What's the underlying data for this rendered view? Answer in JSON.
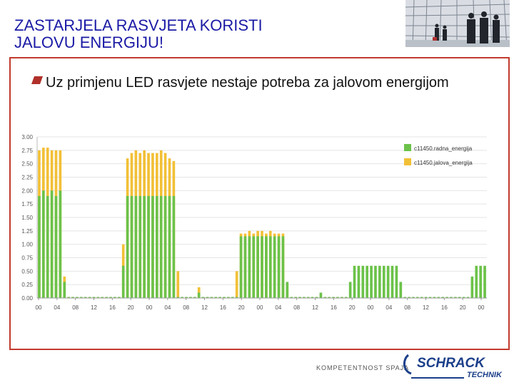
{
  "slide": {
    "title": "ZASTARJELA RASVJETA KORISTI\nJALOVU ENERGIJU!",
    "bullet": "Uz primjenu LED rasvjete nestaje potreba za jalovom energijom"
  },
  "footer": {
    "tagline": "KOMPETENTNOST SPAJA",
    "logo_main": "SCHRACK",
    "logo_sub": "TECHNIK"
  },
  "colors": {
    "title": "#1a1aa6",
    "frame": "#c23a2e",
    "bullet": "#b0302a",
    "radna": "#6cc24a",
    "jalova": "#f2c037"
  },
  "chart_data": {
    "type": "bar",
    "title": "",
    "xlabel": "",
    "ylabel": "",
    "ylim": [
      0,
      3
    ],
    "yticks": [
      "0.00",
      "0.25",
      "0.50",
      "0.75",
      "1.00",
      "1.25",
      "1.50",
      "1.75",
      "2.00",
      "2.25",
      "2.50",
      "2.75",
      "3.00"
    ],
    "xticks": [
      "00",
      "04",
      "08",
      "12",
      "16",
      "20",
      "00",
      "04",
      "08",
      "12",
      "16",
      "20",
      "00",
      "04",
      "08",
      "12",
      "16",
      "20",
      "00",
      "04",
      "08",
      "12",
      "16",
      "20",
      "00"
    ],
    "grid": true,
    "legend_position": "top-right",
    "series": [
      {
        "name": "c11450.radna_energija",
        "values": [
          1.9,
          2.0,
          1.9,
          2.0,
          1.9,
          2.0,
          0.3,
          0.02,
          0.02,
          0.02,
          0.02,
          0.02,
          0.02,
          0.02,
          0.02,
          0.02,
          0.02,
          0.02,
          0.02,
          0.02,
          0.6,
          1.9,
          1.9,
          1.9,
          1.9,
          1.9,
          1.9,
          1.9,
          1.9,
          1.9,
          1.9,
          1.9,
          1.9,
          0.02,
          0.02,
          0.02,
          0.02,
          0.02,
          0.1,
          0.02,
          0.02,
          0.02,
          0.02,
          0.02,
          0.02,
          0.02,
          0.02,
          0.02,
          1.15,
          1.15,
          1.15,
          1.15,
          1.15,
          1.15,
          1.15,
          1.15,
          1.15,
          1.15,
          1.15,
          0.3,
          0.02,
          0.02,
          0.02,
          0.02,
          0.02,
          0.02,
          0.02,
          0.1,
          0.02,
          0.02,
          0.02,
          0.02,
          0.02,
          0.02,
          0.3,
          0.6,
          0.6,
          0.6,
          0.6,
          0.6,
          0.6,
          0.6,
          0.6,
          0.6,
          0.6,
          0.6,
          0.3,
          0.02,
          0.02,
          0.02,
          0.02,
          0.02,
          0.02,
          0.02,
          0.02,
          0.02,
          0.02,
          0.02,
          0.02,
          0.02,
          0.02,
          0.02,
          0.02,
          0.4,
          0.6,
          0.6,
          0.6
        ]
      },
      {
        "name": "c11450.jalova_energija",
        "values": [
          2.75,
          2.8,
          2.8,
          2.75,
          2.75,
          2.75,
          0.4,
          0.02,
          0.02,
          0.02,
          0.02,
          0.02,
          0.02,
          0.02,
          0.02,
          0.02,
          0.02,
          0.02,
          0.02,
          0.02,
          1.0,
          2.6,
          2.7,
          2.75,
          2.7,
          2.75,
          2.7,
          2.7,
          2.7,
          2.75,
          2.7,
          2.6,
          2.55,
          0.5,
          0.02,
          0.02,
          0.02,
          0.02,
          0.2,
          0.02,
          0.02,
          0.02,
          0.02,
          0.02,
          0.02,
          0.02,
          0.02,
          0.5,
          1.2,
          1.2,
          1.25,
          1.2,
          1.25,
          1.25,
          1.2,
          1.25,
          1.2,
          1.2,
          1.2,
          0.25,
          0.02,
          0.02,
          0.02,
          0.02,
          0.02,
          0.02,
          0.02,
          0.02,
          0.02,
          0.02,
          0.02,
          0.02,
          0.02,
          0.02,
          0,
          0,
          0,
          0,
          0,
          0,
          0,
          0,
          0,
          0,
          0,
          0,
          0,
          0,
          0,
          0,
          0,
          0,
          0,
          0,
          0,
          0,
          0,
          0,
          0,
          0,
          0,
          0,
          0,
          0,
          0,
          0,
          0
        ]
      }
    ]
  }
}
